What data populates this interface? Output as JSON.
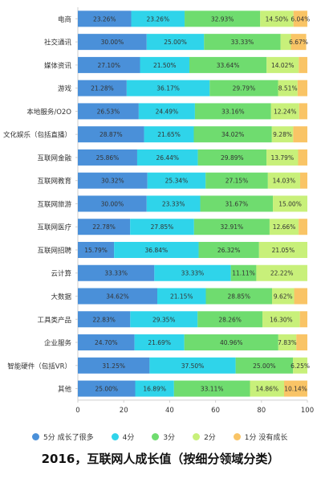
{
  "chart_data": {
    "type": "bar",
    "orientation": "horizontal",
    "stacked": true,
    "title": "2016，互联网人成长值（按细分领域分类）",
    "categories": [
      "电商",
      "社交通讯",
      "媒体资讯",
      "游戏",
      "本地服务/O2O",
      "文化娱乐（包括直播）",
      "互联网金融",
      "互联网教育",
      "互联网旅游",
      "互联网医疗",
      "互联网招聘",
      "云计算",
      "大数据",
      "工具类产品",
      "企业服务",
      "智能硬件（包括VR）",
      "其他"
    ],
    "series": [
      {
        "name": "5分 成长了很多",
        "color": "#4a90d9",
        "values": [
          23.26,
          30.0,
          27.1,
          21.28,
          26.53,
          28.87,
          25.86,
          30.32,
          30.0,
          22.78,
          15.79,
          33.33,
          34.62,
          22.83,
          24.7,
          31.25,
          25.0
        ]
      },
      {
        "name": "4分",
        "color": "#2fd4ea",
        "values": [
          23.26,
          25.0,
          21.5,
          36.17,
          24.49,
          21.65,
          26.44,
          25.34,
          23.33,
          27.85,
          36.84,
          33.33,
          21.15,
          29.35,
          21.69,
          37.5,
          16.89
        ]
      },
      {
        "name": "3分",
        "color": "#6fdc6f",
        "values": [
          32.93,
          33.33,
          33.64,
          29.79,
          33.16,
          34.02,
          29.89,
          27.15,
          31.67,
          32.91,
          26.32,
          11.11,
          28.85,
          28.26,
          40.96,
          25.0,
          33.11
        ]
      },
      {
        "name": "2分",
        "color": "#c8f07a",
        "values": [
          14.5,
          4.5,
          14.02,
          8.51,
          12.24,
          9.28,
          13.79,
          14.03,
          15.0,
          12.66,
          21.05,
          22.22,
          9.62,
          16.3,
          7.83,
          6.25,
          14.86
        ]
      },
      {
        "name": "1分 没有成长",
        "color": "#f9c466",
        "values": [
          6.04,
          6.67,
          3.74,
          4.26,
          3.57,
          6.19,
          4.02,
          3.17,
          0.0,
          3.8,
          0.0,
          0.0,
          5.77,
          3.26,
          4.82,
          0.0,
          10.14
        ]
      }
    ],
    "labels": [
      [
        "23.26%",
        "23.26%",
        "32.93%",
        "14.50%",
        "6.04%"
      ],
      [
        "30.00%",
        "25.00%",
        "33.33%",
        "",
        "6.67%"
      ],
      [
        "27.10%",
        "21.50%",
        "33.64%",
        "14.02%",
        ""
      ],
      [
        "21.28%",
        "36.17%",
        "29.79%",
        "8.51%",
        ""
      ],
      [
        "26.53%",
        "24.49%",
        "33.16%",
        "12.24%",
        ""
      ],
      [
        "28.87%",
        "21.65%",
        "34.02%",
        "9.28%",
        ""
      ],
      [
        "25.86%",
        "26.44%",
        "29.89%",
        "13.79%",
        ""
      ],
      [
        "30.32%",
        "25.34%",
        "27.15%",
        "14.03%",
        ""
      ],
      [
        "30.00%",
        "23.33%",
        "31.67%",
        "15.00%",
        ""
      ],
      [
        "22.78%",
        "27.85%",
        "32.91%",
        "12.66%",
        ""
      ],
      [
        "15.79%",
        "36.84%",
        "26.32%",
        "21.05%",
        ""
      ],
      [
        "33.33%",
        "33.33%",
        "11.11%",
        "22.22%",
        ""
      ],
      [
        "34.62%",
        "21.15%",
        "28.85%",
        "9.62%",
        ""
      ],
      [
        "22.83%",
        "29.35%",
        "28.26%",
        "16.30%",
        ""
      ],
      [
        "24.70%",
        "21.69%",
        "40.96%",
        "7.83%",
        ""
      ],
      [
        "31.25%",
        "37.50%",
        "25.00%",
        "6.25%",
        ""
      ],
      [
        "25.00%",
        "16.89%",
        "33.11%",
        "14.86%",
        "10.14%"
      ]
    ],
    "xlim": [
      0,
      100
    ],
    "xticks": [
      0,
      20,
      40,
      60,
      80,
      100
    ],
    "grid": false,
    "legend_position": "bottom"
  }
}
